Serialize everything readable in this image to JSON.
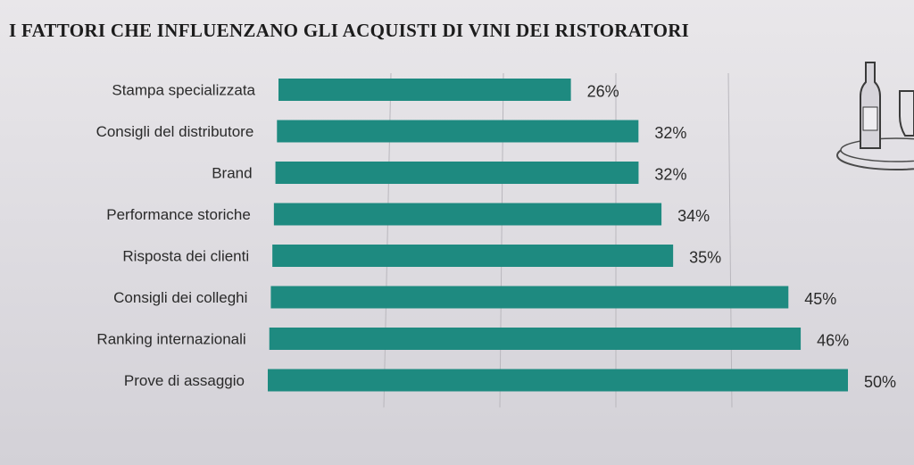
{
  "title": "I FATTORI CHE INFLUENZANO GLI ACQUISTI DI VINI DEI RISTORATORI",
  "colors": {
    "bar": "#1e8a80",
    "text": "#2a2a2a",
    "grid": "#b9b7bd"
  },
  "decoration": {
    "icon": "wine-bottle-and-glass-on-tray-illustration"
  },
  "chart_data": {
    "type": "bar",
    "orientation": "horizontal",
    "title": "I FATTORI CHE INFLUENZANO GLI ACQUISTI DI VINI DEI RISTORATORI",
    "categories": [
      "Stampa specializzata",
      "Consigli del distributore",
      "Brand",
      "Performance storiche",
      "Risposta dei clienti",
      "Consigli dei colleghi",
      "Ranking internazionali",
      "Prove di assaggio"
    ],
    "values": [
      26,
      32,
      32,
      34,
      35,
      45,
      46,
      50
    ],
    "value_labels": [
      "26%",
      "32%",
      "32%",
      "34%",
      "35%",
      "45%",
      "46%",
      "50%"
    ],
    "xlim": [
      0,
      50
    ],
    "grid": true,
    "xlabel": "",
    "ylabel": ""
  }
}
